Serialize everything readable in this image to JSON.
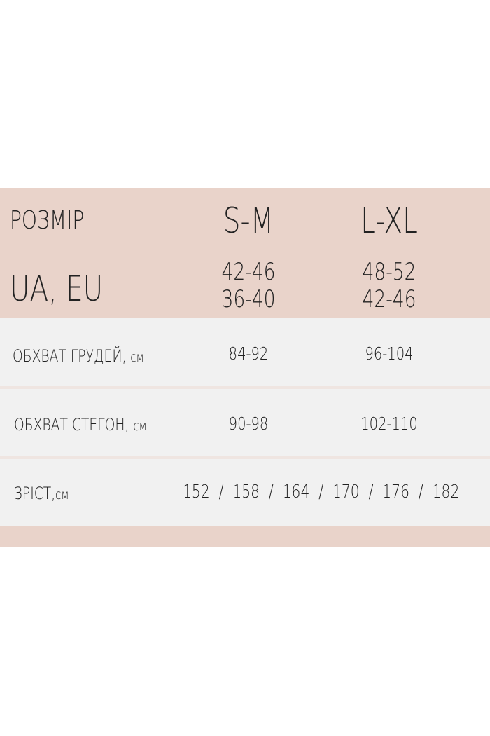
{
  "header": {
    "size_label": "РОЗМІР",
    "region_label": "UA, EU",
    "sizes": [
      {
        "name": "S-M",
        "ua": "42-46",
        "eu": "36-40"
      },
      {
        "name": "L-XL",
        "ua": "48-52",
        "eu": "42-46"
      }
    ]
  },
  "rows": [
    {
      "label": "ОБХВАТ ГРУДЕЙ,",
      "unit": "см",
      "values": [
        "84-92",
        "96-104"
      ]
    },
    {
      "label": "ОБХВАТ СТЕГОН,",
      "unit": "см",
      "values": [
        "90-98",
        "102-110"
      ]
    }
  ],
  "height_row": {
    "label": "ЗРІСТ,",
    "unit": "см",
    "value": "152  /  158  /  164  /  170  /  176  /  182"
  },
  "colors": {
    "header_bg": "#e9d3ca",
    "row_bg": "#f1f1f1",
    "separator": "#efe5e1"
  }
}
